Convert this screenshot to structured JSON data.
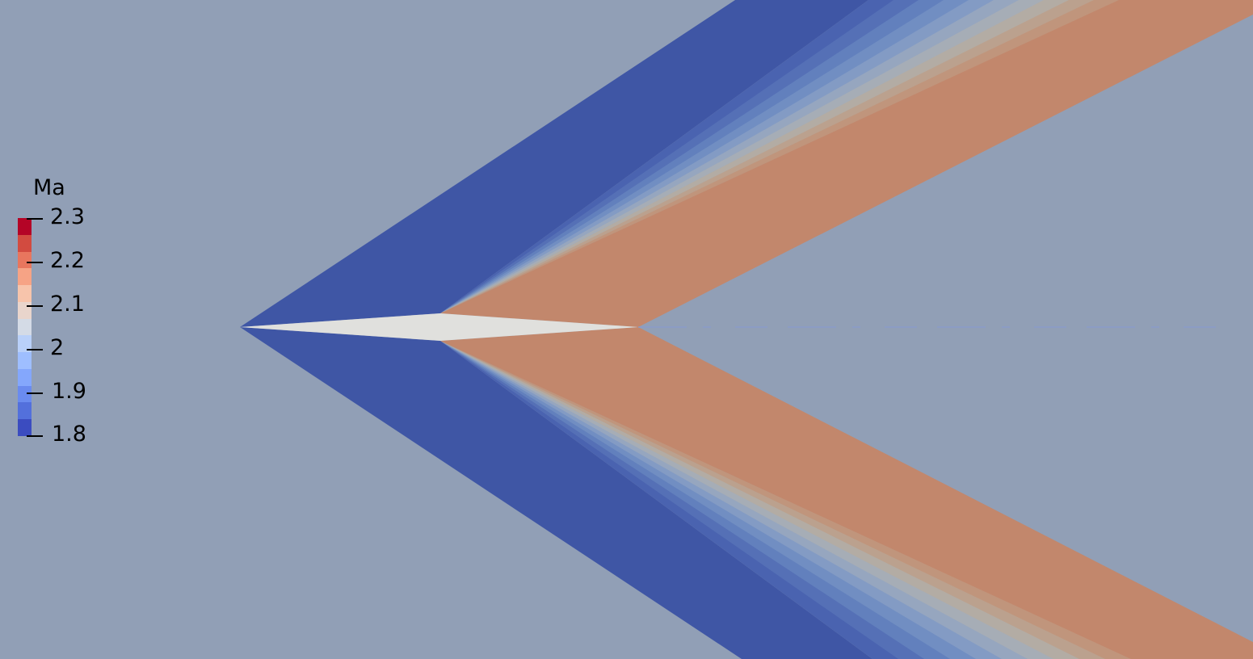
{
  "colors": {
    "background": "#919fb6",
    "mach_low": "#3f56a5",
    "mach_high": "#c2876c",
    "body_fill": "#e0e0dd",
    "fan_bands": [
      "#4a63b0",
      "#5570b6",
      "#6280bd",
      "#718ec2",
      "#839bc4",
      "#96a6bf",
      "#a6adb6",
      "#b3aca4",
      "#bba18e",
      "#c0957c"
    ]
  },
  "legend": {
    "title": "Ma",
    "ticks": [
      "2.3",
      "2.2",
      "2.1",
      "2",
      "1.9",
      "1.8"
    ],
    "colormap": [
      "#b40426",
      "#d24b40",
      "#e8765e",
      "#f6a385",
      "#f7c4ab",
      "#e9d5cc",
      "#d4dbe6",
      "#b9d0f9",
      "#9ebeff",
      "#84a7fc",
      "#6a8bef",
      "#5370dc",
      "#3b4cc0"
    ]
  }
}
